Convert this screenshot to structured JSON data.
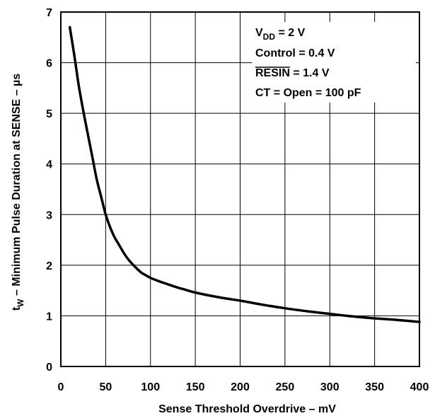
{
  "chart_data": {
    "type": "line",
    "xlabel": "Sense Threshold Overdrive – mV",
    "ylabel": {
      "prefix": "t",
      "sub": "W",
      "rest": " – Minimum Pulse Duration at SENSE – ",
      "unit": "µs"
    },
    "xlim": [
      0,
      400
    ],
    "ylim": [
      0,
      7
    ],
    "xticks": [
      "0",
      "50",
      "100",
      "150",
      "200",
      "250",
      "300",
      "350",
      "400"
    ],
    "yticks": [
      "0",
      "1",
      "2",
      "3",
      "4",
      "5",
      "6",
      "7"
    ],
    "grid": true,
    "conditions": [
      {
        "main": "V",
        "sub": "DD",
        "rest": " = 2 V"
      },
      {
        "main": "Control = 0.4 V"
      },
      {
        "main": "RESIN",
        "overline": true,
        "rest": " = 1.4 V"
      },
      {
        "main": "CT = Open = 100 pF"
      }
    ],
    "series": [
      {
        "x": [
          10,
          15,
          20,
          25,
          30,
          35,
          40,
          45,
          50,
          55,
          60,
          65,
          70,
          75,
          80,
          85,
          90,
          95,
          100,
          110,
          120,
          130,
          140,
          150,
          175,
          200,
          225,
          250,
          275,
          300,
          325,
          350,
          375,
          400
        ],
        "y": [
          6.7,
          6.15,
          5.55,
          5.05,
          4.6,
          4.15,
          3.7,
          3.35,
          3.0,
          2.75,
          2.55,
          2.4,
          2.25,
          2.12,
          2.02,
          1.93,
          1.85,
          1.8,
          1.75,
          1.68,
          1.62,
          1.56,
          1.51,
          1.46,
          1.37,
          1.3,
          1.22,
          1.15,
          1.09,
          1.04,
          0.99,
          0.95,
          0.92,
          0.88
        ]
      }
    ]
  }
}
